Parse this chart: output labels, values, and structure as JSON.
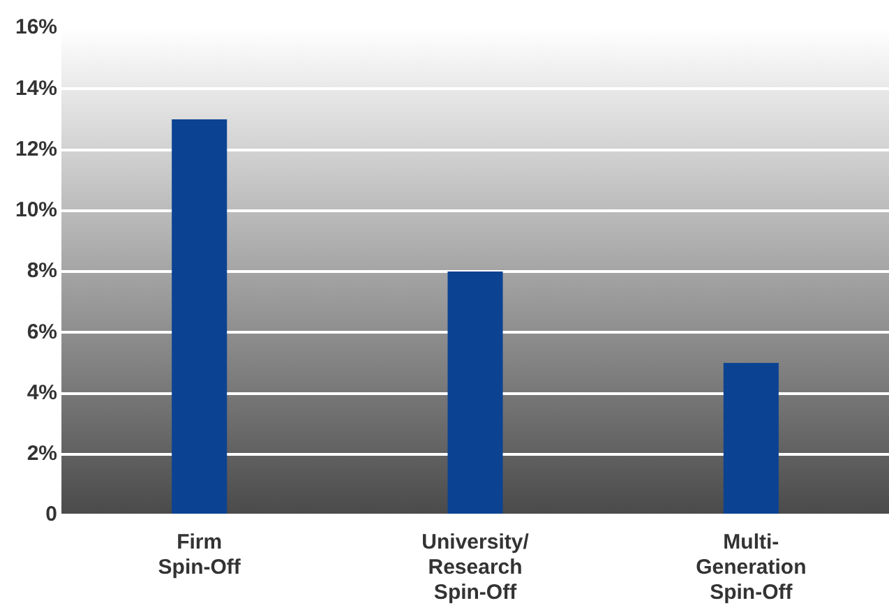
{
  "chart_data": {
    "type": "bar",
    "categories": [
      "Firm\nSpin-Off",
      "University/\nResearch\nSpin-Off",
      "Multi-\nGeneration\nSpin-Off"
    ],
    "values": [
      13,
      8,
      5
    ],
    "color": "#0b4392",
    "ylim": [
      0,
      16
    ],
    "yticks": [
      {
        "value": 0,
        "label": "0"
      },
      {
        "value": 2,
        "label": "2%"
      },
      {
        "value": 4,
        "label": "4%"
      },
      {
        "value": 6,
        "label": "6%"
      },
      {
        "value": 8,
        "label": "8%"
      },
      {
        "value": 10,
        "label": "10%"
      },
      {
        "value": 12,
        "label": "12%"
      },
      {
        "value": 14,
        "label": "14%"
      },
      {
        "value": 16,
        "label": "16%"
      }
    ],
    "grid": "y",
    "legend": false
  }
}
